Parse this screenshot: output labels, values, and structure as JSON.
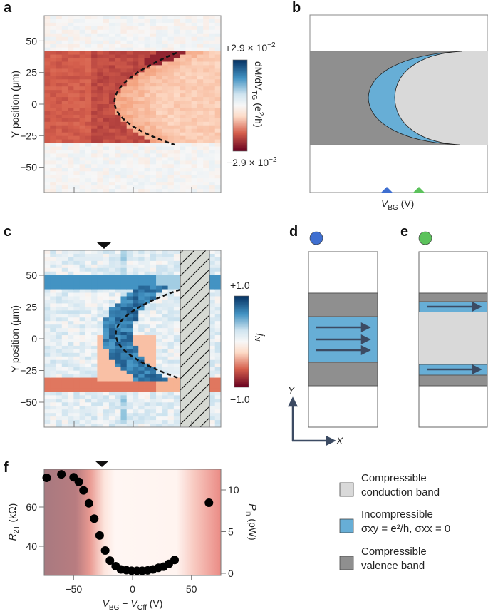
{
  "colors": {
    "valence": "#8f8f8f",
    "incompressible": "#67aed6",
    "conduction": "#d9d9d9",
    "marker_blue": "#3f6fd0",
    "marker_green": "#5cc25c",
    "arrow": "#3c4b63"
  },
  "panels": {
    "a": {
      "letter": "a",
      "ylabel": "Y position (μm)",
      "yticks": [
        "50",
        "25",
        "0",
        "−25",
        "−50"
      ],
      "colorbar": {
        "max": "+2.9 × 10",
        "max_exp": "−2",
        "min": "−2.9 × 10",
        "min_exp": "−2",
        "label_main": "dM/dV",
        "label_sub": "TG",
        "label_unit": " (e",
        "label_sup": "2",
        "label_end": "/h)"
      }
    },
    "b": {
      "letter": "b",
      "xlabel": "V",
      "xlabel_sub": "BG",
      "xlabel_unit": " (V)"
    },
    "c": {
      "letter": "c",
      "ylabel": "Y position (μm)",
      "yticks": [
        "50",
        "25",
        "0",
        "−25",
        "−50"
      ],
      "colorbar": {
        "max": "+1.0",
        "min": "−1.0",
        "label": "j",
        "label_sub": "N"
      }
    },
    "d": {
      "letter": "d",
      "axis_y": "Y",
      "axis_x": "X"
    },
    "e": {
      "letter": "e"
    },
    "f": {
      "letter": "f"
    }
  },
  "legend": [
    {
      "line1": "Compressible",
      "line2": "conduction band",
      "color_key": "conduction"
    },
    {
      "line1": "Incompressible",
      "line2": "σxy = e²/h, σxx = 0",
      "color_key": "incompressible"
    },
    {
      "line1": "Compressible",
      "line2": "valence band",
      "color_key": "valence"
    }
  ],
  "chart_data": [
    {
      "type": "heatmap",
      "panel": "a",
      "ylabel": "Y position (μm)",
      "yticks": [
        50,
        25,
        0,
        -25,
        -50
      ],
      "ylim": [
        -70,
        70
      ],
      "colorbar_range": [
        -0.029,
        0.029
      ],
      "colorbar_label": "dM/dV_TG (e²/h)",
      "colormap": "RdBu"
    },
    {
      "type": "heatmap",
      "panel": "c",
      "ylabel": "Y position (μm)",
      "yticks": [
        50,
        25,
        0,
        -25,
        -50
      ],
      "ylim": [
        -70,
        70
      ],
      "colorbar_range": [
        -1.0,
        1.0
      ],
      "colorbar_label": "j_N",
      "colormap": "RdBu"
    },
    {
      "type": "scatter",
      "panel": "f",
      "xlabel": "V_BG − V_Off (V)",
      "ylabel": "R_2T (kΩ)",
      "y2label": "P_in (pW)",
      "xlim": [
        -75,
        75
      ],
      "ylim": [
        25,
        79
      ],
      "y2lim": [
        0,
        12.8
      ],
      "xticks": [
        -50,
        0,
        50
      ],
      "xtick_labels": [
        "−50",
        "0",
        "50"
      ],
      "yticks": [
        40,
        60
      ],
      "y2ticks": [
        0,
        5,
        10
      ],
      "marker_x": -26,
      "x": [
        -72.9,
        -60.4,
        -50,
        -45.6,
        -41.6,
        -37,
        -32.5,
        -27.9,
        -23.2,
        -19.2,
        -14.3,
        -9.9,
        -5.3,
        -0.8,
        3.8,
        8.3,
        12.9,
        17.3,
        22,
        26.4,
        30.8,
        35.7,
        64.9
      ],
      "y": [
        74.9,
        76.7,
        75.2,
        72.8,
        68.5,
        61.9,
        54.1,
        45.5,
        37.8,
        32.7,
        29.8,
        28.2,
        27.8,
        27.5,
        27.5,
        27.5,
        27.7,
        28.2,
        29.0,
        29.6,
        31.0,
        33.0,
        62.2
      ]
    }
  ]
}
